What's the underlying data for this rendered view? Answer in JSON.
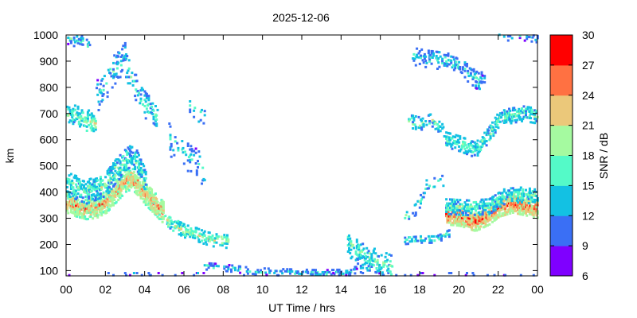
{
  "chart_data": {
    "type": "heatmap",
    "title": "2025-12-06",
    "xlabel": "UT Time / hrs",
    "ylabel": "km",
    "xlim": [
      0,
      24
    ],
    "ylim": [
      80,
      1000
    ],
    "x_ticks": [
      "00",
      "02",
      "04",
      "06",
      "08",
      "10",
      "12",
      "14",
      "16",
      "18",
      "20",
      "22",
      "00"
    ],
    "x_tick_values": [
      0,
      2,
      4,
      6,
      8,
      10,
      12,
      14,
      16,
      18,
      20,
      22,
      24
    ],
    "y_ticks": [
      "100",
      "200",
      "300",
      "400",
      "500",
      "600",
      "700",
      "800",
      "900",
      "1000"
    ],
    "y_tick_values": [
      100,
      200,
      300,
      400,
      500,
      600,
      700,
      800,
      900,
      1000
    ],
    "colorbar": {
      "label": "SNR / dB",
      "range": [
        6,
        30
      ],
      "ticks": [
        "6",
        "9",
        "12",
        "15",
        "18",
        "21",
        "24",
        "27",
        "30"
      ],
      "tick_values": [
        6,
        9,
        12,
        15,
        18,
        21,
        24,
        27,
        30
      ],
      "colors": [
        "#7f00ff",
        "#3a6ff5",
        "#13c1e3",
        "#54fac8",
        "#a5faa0",
        "#ebc87a",
        "#ff7142",
        "#ff0000"
      ]
    },
    "grid": false,
    "traces": [
      {
        "t_start": 0.0,
        "t_end": 4.9,
        "points": [
          [
            0.0,
            360
          ],
          [
            0.5,
            345
          ],
          [
            1.0,
            335
          ],
          [
            1.5,
            340
          ],
          [
            2.0,
            360
          ],
          [
            2.5,
            400
          ],
          [
            3.0,
            440
          ],
          [
            3.3,
            450
          ],
          [
            3.7,
            420
          ],
          [
            4.0,
            390
          ],
          [
            4.4,
            360
          ],
          [
            4.9,
            320
          ]
        ],
        "spread": 40,
        "snr": 18,
        "density": 0.85
      },
      {
        "t_start": 5.0,
        "t_end": 8.2,
        "points": [
          [
            5.0,
            300
          ],
          [
            5.5,
            270
          ],
          [
            6.0,
            250
          ],
          [
            6.5,
            240
          ],
          [
            7.0,
            225
          ],
          [
            7.5,
            215
          ],
          [
            8.2,
            210
          ]
        ],
        "spread": 25,
        "snr": 14,
        "density": 0.45
      },
      {
        "t_start": 0.0,
        "t_end": 4.0,
        "points": [
          [
            0.0,
            430
          ],
          [
            1.0,
            400
          ],
          [
            2.0,
            430
          ],
          [
            2.5,
            480
          ],
          [
            3.0,
            520
          ],
          [
            3.4,
            540
          ],
          [
            3.8,
            470
          ],
          [
            4.0,
            440
          ]
        ],
        "spread": 45,
        "snr": 12,
        "density": 0.5
      },
      {
        "t_start": 0.0,
        "t_end": 1.5,
        "points": [
          [
            0.0,
            700
          ],
          [
            0.7,
            680
          ],
          [
            1.5,
            660
          ]
        ],
        "spread": 40,
        "snr": 13,
        "density": 0.55
      },
      {
        "t_start": 1.5,
        "t_end": 3.0,
        "points": [
          [
            1.5,
            760
          ],
          [
            2.2,
            840
          ],
          [
            3.0,
            920
          ]
        ],
        "spread": 60,
        "snr": 10,
        "density": 0.2
      },
      {
        "t_start": 3.0,
        "t_end": 4.6,
        "points": [
          [
            3.0,
            880
          ],
          [
            3.5,
            800
          ],
          [
            4.0,
            730
          ],
          [
            4.6,
            690
          ]
        ],
        "spread": 50,
        "snr": 11,
        "density": 0.25
      },
      {
        "t_start": 0.0,
        "t_end": 1.2,
        "points": [
          [
            0.0,
            990
          ],
          [
            0.6,
            975
          ],
          [
            1.2,
            960
          ]
        ],
        "spread": 25,
        "snr": 10,
        "density": 0.3
      },
      {
        "t_start": 5.2,
        "t_end": 7.0,
        "points": [
          [
            5.2,
            600
          ],
          [
            5.8,
            560
          ],
          [
            6.3,
            530
          ],
          [
            7.0,
            480
          ]
        ],
        "spread": 60,
        "snr": 10,
        "density": 0.15
      },
      {
        "t_start": 6.2,
        "t_end": 7.0,
        "points": [
          [
            6.2,
            740
          ],
          [
            6.6,
            700
          ],
          [
            7.0,
            690
          ]
        ],
        "spread": 30,
        "snr": 11,
        "density": 0.2
      },
      {
        "t_start": 7.0,
        "t_end": 16.0,
        "points": [
          [
            7.0,
            115
          ],
          [
            8.0,
            110
          ],
          [
            9.0,
            100
          ],
          [
            10.0,
            95
          ],
          [
            11.0,
            92
          ],
          [
            12.0,
            90
          ],
          [
            13.0,
            88
          ],
          [
            14.0,
            90
          ],
          [
            15.0,
            105
          ],
          [
            16.0,
            100
          ]
        ],
        "spread": 12,
        "snr": 10,
        "density": 0.35
      },
      {
        "t_start": 14.3,
        "t_end": 16.6,
        "points": [
          [
            14.3,
            200
          ],
          [
            14.8,
            170
          ],
          [
            15.2,
            150
          ],
          [
            15.6,
            140
          ],
          [
            16.0,
            130
          ],
          [
            16.6,
            110
          ]
        ],
        "spread": 45,
        "snr": 12,
        "density": 0.35
      },
      {
        "t_start": 17.2,
        "t_end": 19.5,
        "points": [
          [
            17.2,
            215
          ],
          [
            18.0,
            220
          ],
          [
            18.8,
            220
          ],
          [
            19.5,
            245
          ]
        ],
        "spread": 15,
        "snr": 11,
        "density": 0.5
      },
      {
        "t_start": 19.3,
        "t_end": 24.0,
        "points": [
          [
            19.3,
            310
          ],
          [
            20.0,
            305
          ],
          [
            20.8,
            285
          ],
          [
            21.5,
            310
          ],
          [
            22.0,
            340
          ],
          [
            22.7,
            355
          ],
          [
            23.3,
            345
          ],
          [
            24.0,
            335
          ]
        ],
        "spread": 35,
        "snr": 20,
        "density": 0.9
      },
      {
        "t_start": 19.3,
        "t_end": 24.0,
        "points": [
          [
            19.3,
            345
          ],
          [
            20.5,
            340
          ],
          [
            21.5,
            345
          ],
          [
            22.3,
            385
          ],
          [
            23.2,
            390
          ],
          [
            24.0,
            380
          ]
        ],
        "spread": 30,
        "snr": 12,
        "density": 0.55
      },
      {
        "t_start": 17.2,
        "t_end": 19.2,
        "points": [
          [
            17.2,
            300
          ],
          [
            17.8,
            340
          ],
          [
            18.3,
            420
          ],
          [
            18.8,
            430
          ],
          [
            19.2,
            450
          ]
        ],
        "spread": 25,
        "snr": 11,
        "density": 0.2
      },
      {
        "t_start": 17.4,
        "t_end": 19.3,
        "points": [
          [
            17.4,
            670
          ],
          [
            18.0,
            660
          ],
          [
            18.5,
            680
          ],
          [
            19.3,
            630
          ]
        ],
        "spread": 25,
        "snr": 12,
        "density": 0.3
      },
      {
        "t_start": 19.3,
        "t_end": 24.0,
        "points": [
          [
            19.3,
            600
          ],
          [
            20.0,
            585
          ],
          [
            20.8,
            560
          ],
          [
            21.5,
            620
          ],
          [
            22.0,
            680
          ],
          [
            22.5,
            690
          ],
          [
            23.2,
            700
          ],
          [
            24.0,
            690
          ]
        ],
        "spread": 30,
        "snr": 12,
        "density": 0.55
      },
      {
        "t_start": 17.6,
        "t_end": 21.3,
        "points": [
          [
            17.6,
            920
          ],
          [
            18.3,
            910
          ],
          [
            19.3,
            900
          ],
          [
            19.8,
            890
          ],
          [
            20.5,
            850
          ],
          [
            21.0,
            820
          ],
          [
            21.3,
            840
          ]
        ],
        "spread": 35,
        "snr": 10,
        "density": 0.3
      },
      {
        "t_start": 22.0,
        "t_end": 24.0,
        "points": [
          [
            22.0,
            990
          ],
          [
            23.0,
            995
          ],
          [
            24.0,
            985
          ]
        ],
        "spread": 15,
        "snr": 10,
        "density": 0.3
      },
      {
        "t_start": 0.0,
        "t_end": 24.0,
        "points": [
          [
            0.0,
            85
          ],
          [
            24.0,
            85
          ]
        ],
        "spread": 4,
        "snr": 10,
        "density": 0.12
      }
    ]
  }
}
